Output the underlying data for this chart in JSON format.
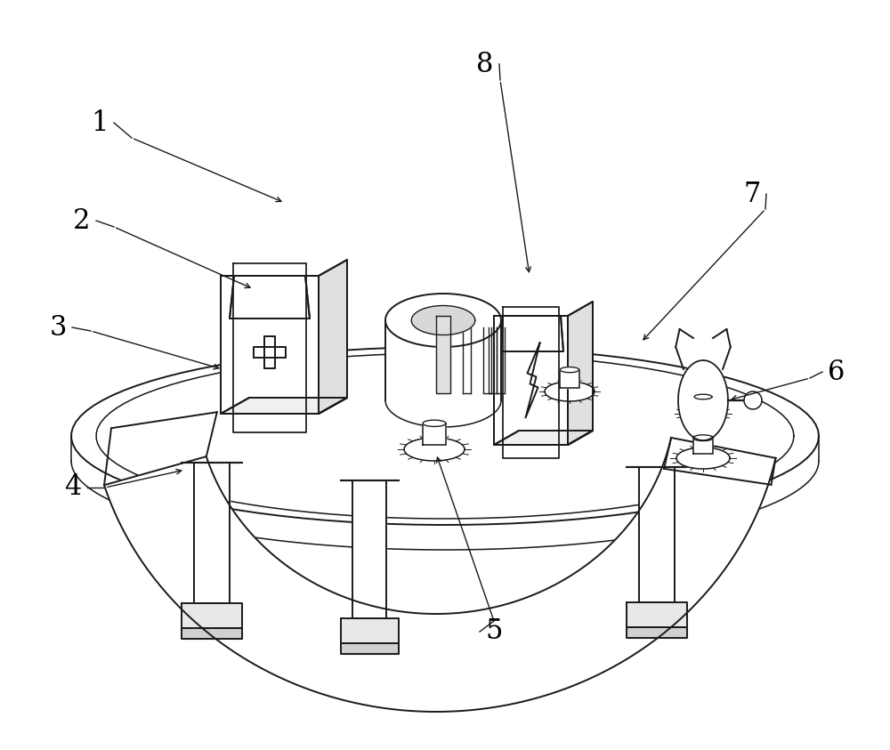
{
  "fig_width": 10.0,
  "fig_height": 8.43,
  "dpi": 100,
  "bg_color": "#ffffff",
  "line_color": "#1a1a1a",
  "label_color": "#000000",
  "label_fontsize": 22
}
